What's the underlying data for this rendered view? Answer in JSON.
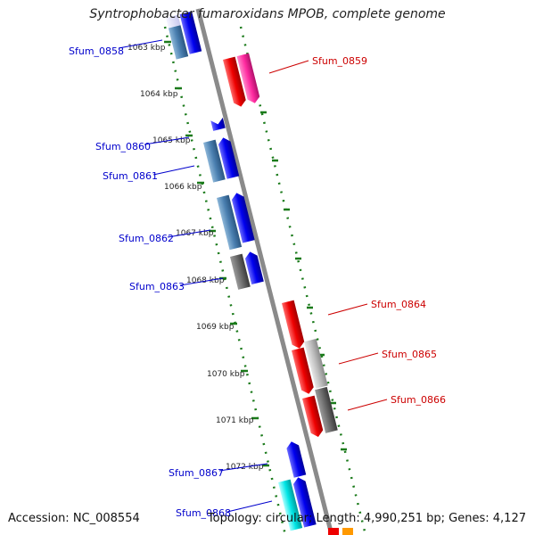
{
  "title": "Syntrophobacter fumaroxidans MPOB, complete genome",
  "accession": "Accession: NC_008554",
  "summary": "Topology: circular; Length: 4,990,251 bp; Genes: 4,127",
  "kbp_ticks": [
    "1063 kbp",
    "1064 kbp",
    "1065 kbp",
    "1066 kbp",
    "1067 kbp",
    "1068 kbp",
    "1069 kbp",
    "1070 kbp",
    "1071 kbp",
    "1072 kbp"
  ],
  "genes_left": [
    {
      "name": "Sfum_0858",
      "color": "#0000cc"
    },
    {
      "name": "Sfum_0860",
      "color": "#0000cc"
    },
    {
      "name": "Sfum_0861",
      "color": "#0000cc"
    },
    {
      "name": "Sfum_0862",
      "color": "#0000cc"
    },
    {
      "name": "Sfum_0863",
      "color": "#0000cc"
    },
    {
      "name": "Sfum_0867",
      "color": "#0000cc"
    },
    {
      "name": "Sfum_0868",
      "color": "#0000cc"
    }
  ],
  "genes_right": [
    {
      "name": "Sfum_0859",
      "color": "#cc0000"
    },
    {
      "name": "Sfum_0864",
      "color": "#cc0000"
    },
    {
      "name": "Sfum_0865",
      "color": "#cc0000"
    },
    {
      "name": "Sfum_0866",
      "color": "#cc0000"
    }
  ],
  "colors": {
    "backbone": "#8a8a8a",
    "tick_green": "#1a7a1a",
    "forward_blue": "#0000ee",
    "steel_blue": "#4a7fb0",
    "reverse_red": "#ee0000",
    "pink": "#ff2aa0",
    "gray_light": "#bdbdbd",
    "gray_dark": "#6a6a6a",
    "cyan": "#00e5e5",
    "orange": "#ff9900"
  }
}
